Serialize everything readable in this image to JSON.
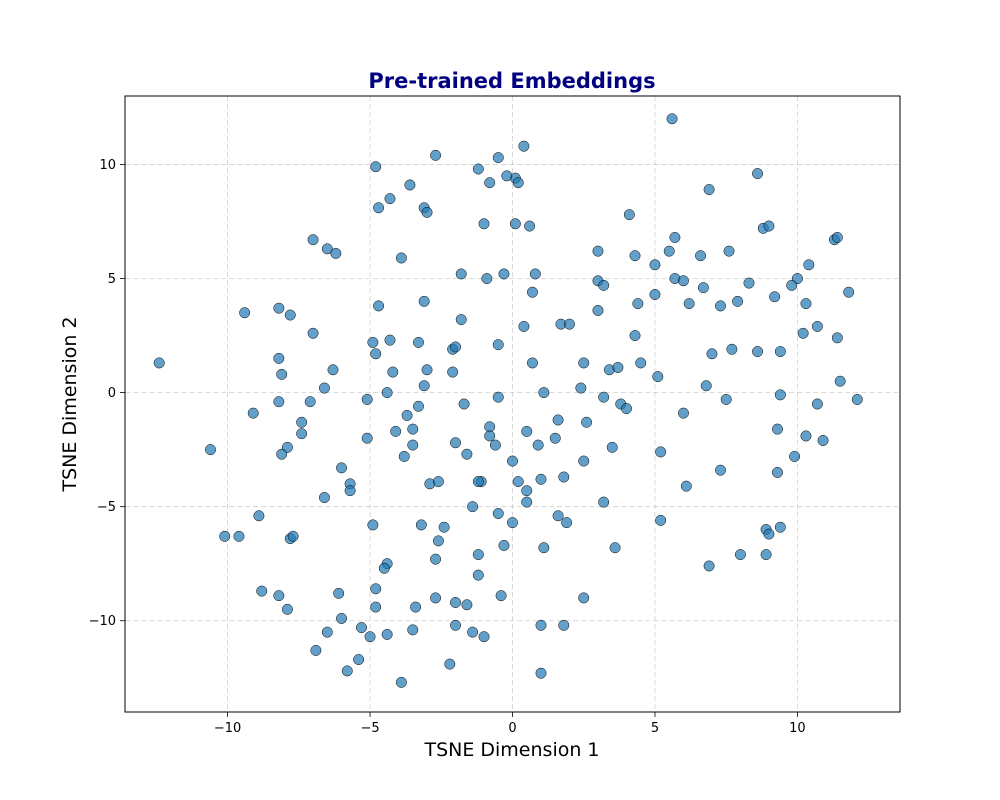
{
  "colors": {
    "title": "#000080",
    "point_fill": "#1f77b4"
  },
  "chart_data": {
    "type": "scatter",
    "title": "Pre-trained Embeddings",
    "xlabel": "TSNE Dimension 1",
    "ylabel": "TSNE Dimension 2",
    "xlim": [
      -13.6,
      13.6
    ],
    "ylim": [
      -14.0,
      13.0
    ],
    "xticks": [
      -10,
      -5,
      0,
      5,
      10
    ],
    "yticks": [
      -10,
      -5,
      0,
      5,
      10
    ],
    "xtick_labels": [
      "−10",
      "−5",
      "0",
      "5",
      "10"
    ],
    "ytick_labels": [
      "−10",
      "−5",
      "0",
      "5",
      "10"
    ],
    "grid": true,
    "point_alpha": 0.7,
    "points": [
      [
        5.6,
        12.0
      ],
      [
        -12.4,
        1.3
      ],
      [
        -10.6,
        -2.5
      ],
      [
        -2.7,
        10.4
      ],
      [
        0.4,
        10.8
      ],
      [
        -0.5,
        10.3
      ],
      [
        -1.2,
        9.8
      ],
      [
        -4.8,
        9.9
      ],
      [
        0.1,
        9.4
      ],
      [
        -0.2,
        9.5
      ],
      [
        -0.8,
        9.2
      ],
      [
        0.2,
        9.2
      ],
      [
        -3.6,
        9.1
      ],
      [
        -4.3,
        8.5
      ],
      [
        -4.7,
        8.1
      ],
      [
        -3.1,
        8.1
      ],
      [
        -3.0,
        7.9
      ],
      [
        -1.0,
        7.4
      ],
      [
        0.1,
        7.4
      ],
      [
        0.6,
        7.3
      ],
      [
        -7.0,
        6.7
      ],
      [
        -6.5,
        6.3
      ],
      [
        -6.2,
        6.1
      ],
      [
        -3.9,
        5.9
      ],
      [
        -1.8,
        5.2
      ],
      [
        -0.3,
        5.2
      ],
      [
        0.8,
        5.2
      ],
      [
        -0.9,
        5.0
      ],
      [
        0.7,
        4.4
      ],
      [
        -4.7,
        3.8
      ],
      [
        -3.1,
        4.0
      ],
      [
        -9.4,
        3.5
      ],
      [
        -8.2,
        3.7
      ],
      [
        -7.8,
        3.4
      ],
      [
        -1.8,
        3.2
      ],
      [
        0.4,
        2.9
      ],
      [
        1.7,
        3.0
      ],
      [
        2.0,
        3.0
      ],
      [
        -7.0,
        2.6
      ],
      [
        -4.9,
        2.2
      ],
      [
        -4.3,
        2.3
      ],
      [
        -3.3,
        2.2
      ],
      [
        -2.1,
        1.9
      ],
      [
        -2.0,
        2.0
      ],
      [
        -0.5,
        2.1
      ],
      [
        -4.8,
        1.7
      ],
      [
        -8.2,
        1.5
      ],
      [
        -8.1,
        0.8
      ],
      [
        -6.3,
        1.0
      ],
      [
        -4.2,
        0.9
      ],
      [
        -3.0,
        1.0
      ],
      [
        -2.1,
        0.9
      ],
      [
        0.7,
        1.3
      ],
      [
        2.5,
        1.3
      ],
      [
        -6.6,
        0.2
      ],
      [
        -3.1,
        0.3
      ],
      [
        -4.4,
        0.0
      ],
      [
        2.4,
        0.2
      ],
      [
        1.1,
        0.0
      ],
      [
        3.2,
        -0.2
      ],
      [
        -9.1,
        -0.9
      ],
      [
        -8.2,
        -0.4
      ],
      [
        -7.1,
        -0.4
      ],
      [
        -5.1,
        -0.3
      ],
      [
        -3.3,
        -0.6
      ],
      [
        -1.7,
        -0.5
      ],
      [
        -0.5,
        -0.2
      ],
      [
        -3.7,
        -1.0
      ],
      [
        -4.1,
        -1.7
      ],
      [
        -3.5,
        -1.6
      ],
      [
        -7.4,
        -1.3
      ],
      [
        -7.4,
        -1.8
      ],
      [
        -7.9,
        -2.4
      ],
      [
        -8.1,
        -2.7
      ],
      [
        -5.1,
        -2.0
      ],
      [
        -3.5,
        -2.3
      ],
      [
        -3.8,
        -2.8
      ],
      [
        -2.0,
        -2.2
      ],
      [
        -1.6,
        -2.7
      ],
      [
        -0.8,
        -1.5
      ],
      [
        -0.8,
        -1.9
      ],
      [
        -0.6,
        -2.3
      ],
      [
        0.5,
        -1.7
      ],
      [
        0.9,
        -2.3
      ],
      [
        1.6,
        -1.2
      ],
      [
        1.5,
        -2.0
      ],
      [
        2.6,
        -1.3
      ],
      [
        -6.0,
        -3.3
      ],
      [
        -5.7,
        -4.0
      ],
      [
        -5.7,
        -4.3
      ],
      [
        -6.6,
        -4.6
      ],
      [
        -2.9,
        -4.0
      ],
      [
        -2.6,
        -3.9
      ],
      [
        -1.1,
        -3.9
      ],
      [
        -1.2,
        -3.9
      ],
      [
        -1.4,
        -5.0
      ],
      [
        -0.5,
        -5.3
      ],
      [
        0.0,
        -3.0
      ],
      [
        0.2,
        -3.9
      ],
      [
        0.5,
        -4.3
      ],
      [
        0.5,
        -4.8
      ],
      [
        1.0,
        -3.8
      ],
      [
        1.8,
        -3.7
      ],
      [
        2.5,
        -3.0
      ],
      [
        -8.9,
        -5.4
      ],
      [
        -4.9,
        -5.8
      ],
      [
        -3.2,
        -5.8
      ],
      [
        -2.4,
        -5.9
      ],
      [
        -2.6,
        -6.5
      ],
      [
        0.0,
        -5.7
      ],
      [
        1.6,
        -5.4
      ],
      [
        1.9,
        -5.7
      ],
      [
        -10.1,
        -6.3
      ],
      [
        -9.6,
        -6.3
      ],
      [
        -7.8,
        -6.4
      ],
      [
        -7.7,
        -6.3
      ],
      [
        -4.4,
        -7.5
      ],
      [
        -4.5,
        -7.7
      ],
      [
        -2.7,
        -7.3
      ],
      [
        -1.2,
        -7.1
      ],
      [
        -0.3,
        -6.7
      ],
      [
        1.1,
        -6.8
      ],
      [
        -1.2,
        -8.0
      ],
      [
        -8.8,
        -8.7
      ],
      [
        -8.2,
        -8.9
      ],
      [
        -6.1,
        -8.8
      ],
      [
        -4.8,
        -8.6
      ],
      [
        -2.7,
        -9.0
      ],
      [
        -0.4,
        -8.9
      ],
      [
        2.5,
        -9.0
      ],
      [
        -7.9,
        -9.5
      ],
      [
        -4.8,
        -9.4
      ],
      [
        -3.4,
        -9.4
      ],
      [
        -2.0,
        -9.2
      ],
      [
        -1.6,
        -9.3
      ],
      [
        -6.0,
        -9.9
      ],
      [
        -6.5,
        -10.5
      ],
      [
        -5.3,
        -10.3
      ],
      [
        -5.0,
        -10.7
      ],
      [
        -4.4,
        -10.6
      ],
      [
        -3.5,
        -10.4
      ],
      [
        -2.0,
        -10.2
      ],
      [
        -1.4,
        -10.5
      ],
      [
        -1.0,
        -10.7
      ],
      [
        1.0,
        -10.2
      ],
      [
        1.8,
        -10.2
      ],
      [
        -6.9,
        -11.3
      ],
      [
        -5.4,
        -11.7
      ],
      [
        -5.8,
        -12.2
      ],
      [
        -2.2,
        -11.9
      ],
      [
        1.0,
        -12.3
      ],
      [
        -3.9,
        -12.7
      ],
      [
        4.1,
        7.8
      ],
      [
        5.7,
        6.8
      ],
      [
        6.9,
        8.9
      ],
      [
        8.6,
        9.6
      ],
      [
        8.8,
        7.2
      ],
      [
        9.0,
        7.3
      ],
      [
        3.0,
        6.2
      ],
      [
        4.3,
        6.0
      ],
      [
        5.0,
        5.6
      ],
      [
        5.5,
        6.2
      ],
      [
        6.6,
        6.0
      ],
      [
        7.6,
        6.2
      ],
      [
        5.7,
        5.0
      ],
      [
        6.0,
        4.9
      ],
      [
        6.7,
        4.6
      ],
      [
        8.3,
        4.8
      ],
      [
        10.0,
        5.0
      ],
      [
        10.4,
        5.6
      ],
      [
        11.3,
        6.7
      ],
      [
        11.4,
        6.8
      ],
      [
        3.0,
        4.9
      ],
      [
        3.2,
        4.7
      ],
      [
        5.0,
        4.3
      ],
      [
        3.0,
        3.6
      ],
      [
        4.4,
        3.9
      ],
      [
        6.2,
        3.9
      ],
      [
        7.3,
        3.8
      ],
      [
        7.9,
        4.0
      ],
      [
        9.2,
        4.2
      ],
      [
        9.8,
        4.7
      ],
      [
        10.3,
        3.9
      ],
      [
        11.8,
        4.4
      ],
      [
        4.3,
        2.5
      ],
      [
        10.2,
        2.6
      ],
      [
        10.7,
        2.9
      ],
      [
        11.4,
        2.4
      ],
      [
        7.0,
        1.7
      ],
      [
        7.7,
        1.9
      ],
      [
        8.6,
        1.8
      ],
      [
        9.4,
        1.8
      ],
      [
        4.5,
        1.3
      ],
      [
        3.4,
        1.0
      ],
      [
        3.7,
        1.1
      ],
      [
        5.1,
        0.7
      ],
      [
        6.8,
        0.3
      ],
      [
        11.5,
        0.5
      ],
      [
        3.8,
        -0.5
      ],
      [
        4.0,
        -0.7
      ],
      [
        7.5,
        -0.3
      ],
      [
        9.4,
        -0.1
      ],
      [
        10.7,
        -0.5
      ],
      [
        12.1,
        -0.3
      ],
      [
        6.0,
        -0.9
      ],
      [
        9.3,
        -1.6
      ],
      [
        10.3,
        -1.9
      ],
      [
        10.9,
        -2.1
      ],
      [
        3.5,
        -2.4
      ],
      [
        5.2,
        -2.6
      ],
      [
        9.9,
        -2.8
      ],
      [
        7.3,
        -3.4
      ],
      [
        9.3,
        -3.5
      ],
      [
        6.1,
        -4.1
      ],
      [
        3.2,
        -4.8
      ],
      [
        5.2,
        -5.6
      ],
      [
        8.9,
        -6.0
      ],
      [
        9.0,
        -6.2
      ],
      [
        9.4,
        -5.9
      ],
      [
        3.6,
        -6.8
      ],
      [
        8.0,
        -7.1
      ],
      [
        8.9,
        -7.1
      ],
      [
        6.9,
        -7.6
      ]
    ]
  }
}
